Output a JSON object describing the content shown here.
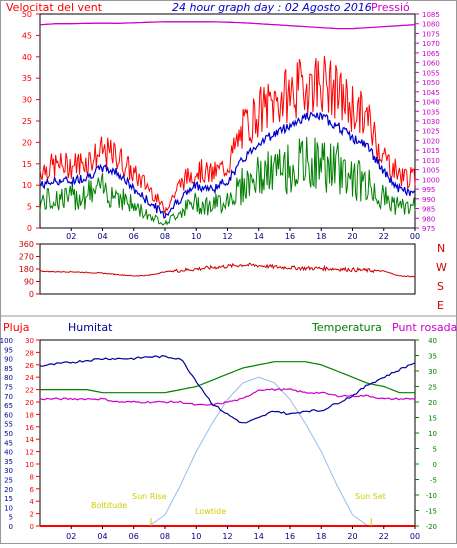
{
  "title": "24 hour graph day : 02 Agosto 2016",
  "top_panel": {
    "left_label": "Velocitat del vent",
    "right_label": "Pressió"
  },
  "dir_panel": {
    "compass_labels": [
      "N",
      "W",
      "S",
      "E",
      "N"
    ]
  },
  "bottom_panel": {
    "label_pluja": "Pluja",
    "label_humitat": "Humitat",
    "label_temperatura": "Temperatura",
    "label_punt_rosada": "Punt rosada",
    "annotations": [
      "Sun Rise",
      "Sun Set",
      "Boltitude",
      "Lowtide"
    ]
  },
  "colors": {
    "wind_gust": "#ff0000",
    "wind_avg": "#0000cc",
    "wind_low": "#008000",
    "pressure": "#cc00cc",
    "direction": "#cc0000",
    "humidity": "#000099",
    "temperature": "#008000",
    "dewpoint": "#cc00cc",
    "solar": "#99bbee",
    "rain": "#ff0000",
    "annotation": "#cccc00"
  },
  "chart_data": [
    {
      "type": "line",
      "title": "24 hour graph day : 02 Agosto 2016",
      "x_ticks": [
        "02",
        "04",
        "06",
        "08",
        "10",
        "12",
        "14",
        "16",
        "18",
        "20",
        "22",
        "00"
      ],
      "left_axis": {
        "ylim": [
          0,
          50
        ],
        "ticks": [
          0,
          5,
          10,
          15,
          20,
          25,
          30,
          35,
          40,
          45,
          50
        ]
      },
      "right_axis": {
        "ylim": [
          975,
          1085
        ],
        "ticks": [
          975,
          980,
          985,
          990,
          995,
          1000,
          1005,
          1010,
          1015,
          1020,
          1025,
          1030,
          1035,
          1040,
          1045,
          1050,
          1055,
          1060,
          1065,
          1070,
          1075,
          1080,
          1085
        ]
      },
      "x": [
        0,
        1,
        2,
        3,
        4,
        5,
        6,
        7,
        8,
        9,
        10,
        11,
        12,
        13,
        14,
        15,
        16,
        17,
        18,
        19,
        20,
        21,
        22,
        23,
        24
      ],
      "series": [
        {
          "role": "wind_gust",
          "axis": "left",
          "values": [
            13,
            14,
            14,
            15,
            17,
            16,
            12,
            9,
            4,
            10,
            13,
            12,
            14,
            22,
            26,
            28,
            30,
            32,
            33,
            30,
            27,
            24,
            16,
            12,
            11
          ]
        },
        {
          "role": "wind_avg",
          "axis": "left",
          "values": [
            10,
            11,
            11,
            12,
            14,
            13,
            9,
            6,
            3,
            7,
            10,
            9,
            11,
            16,
            20,
            22,
            24,
            26,
            26,
            24,
            21,
            19,
            13,
            9,
            8
          ]
        },
        {
          "role": "wind_low",
          "axis": "left",
          "values": [
            6,
            7,
            7,
            8,
            9,
            8,
            5,
            3,
            1,
            4,
            6,
            5,
            7,
            10,
            12,
            13,
            14,
            15,
            15,
            14,
            12,
            10,
            7,
            5,
            5
          ]
        },
        {
          "role": "pressure",
          "axis": "right",
          "values": [
            1079.5,
            1080,
            1080,
            1080.2,
            1080.3,
            1080.2,
            1080.5,
            1080.8,
            1081,
            1081,
            1081,
            1081,
            1080.8,
            1080.5,
            1080,
            1079.5,
            1079,
            1078.5,
            1078,
            1077.5,
            1077.5,
            1078,
            1078.5,
            1079,
            1079.5
          ]
        }
      ]
    },
    {
      "type": "line",
      "x_ticks": [
        "02",
        "04",
        "06",
        "08",
        "10",
        "12",
        "14",
        "16",
        "18",
        "20",
        "22",
        "00"
      ],
      "ylim": [
        0,
        360
      ],
      "y_ticks": [
        0,
        90,
        180,
        270,
        360
      ],
      "x": [
        0,
        1,
        2,
        3,
        4,
        5,
        6,
        7,
        8,
        9,
        10,
        11,
        12,
        13,
        14,
        15,
        16,
        17,
        18,
        19,
        20,
        21,
        22,
        23,
        24
      ],
      "series": [
        {
          "role": "direction",
          "values": [
            165,
            160,
            160,
            155,
            150,
            140,
            130,
            135,
            160,
            170,
            180,
            190,
            200,
            210,
            205,
            195,
            190,
            185,
            185,
            180,
            175,
            170,
            165,
            130,
            125
          ]
        }
      ]
    },
    {
      "type": "line",
      "x_ticks": [
        "02",
        "04",
        "06",
        "08",
        "10",
        "12",
        "14",
        "16",
        "18",
        "20",
        "22",
        "00"
      ],
      "axes": {
        "humidity": {
          "ylim": [
            0,
            100
          ],
          "ticks": [
            0,
            5,
            10,
            15,
            20,
            25,
            30,
            35,
            40,
            45,
            50,
            55,
            60,
            65,
            70,
            75,
            80,
            85,
            90,
            95,
            100
          ]
        },
        "rain": {
          "ylim": [
            0,
            30
          ],
          "ticks": [
            0,
            2,
            4,
            6,
            8,
            10,
            12,
            14,
            16,
            18,
            20,
            22,
            24,
            26,
            28,
            30
          ]
        },
        "temperature": {
          "ylim": [
            -20,
            40
          ],
          "ticks": [
            -20,
            -15,
            -10,
            -5,
            0,
            5,
            10,
            15,
            20,
            25,
            30,
            35,
            40
          ]
        }
      },
      "x": [
        0,
        1,
        2,
        3,
        4,
        5,
        6,
        7,
        8,
        9,
        10,
        11,
        12,
        13,
        14,
        15,
        16,
        17,
        18,
        19,
        20,
        21,
        22,
        23,
        24
      ],
      "series": [
        {
          "role": "humidity",
          "axis": "humidity",
          "values": [
            86,
            87,
            88,
            89,
            90,
            90,
            90,
            91,
            91,
            90,
            78,
            66,
            60,
            55,
            58,
            62,
            60,
            62,
            62,
            66,
            70,
            76,
            80,
            84,
            88
          ]
        },
        {
          "role": "temperature",
          "axis": "temperature",
          "values": [
            24,
            24,
            24,
            24,
            23,
            23,
            23,
            23,
            23,
            24,
            25,
            27,
            29,
            31,
            32,
            33,
            33,
            33,
            32,
            30,
            28,
            26,
            25,
            23,
            23
          ]
        },
        {
          "role": "dewpoint",
          "axis": "temperature",
          "values": [
            21,
            21,
            21,
            21,
            21,
            20,
            20,
            20,
            20,
            20,
            19,
            19,
            20,
            21,
            24,
            24,
            24,
            23,
            23,
            22,
            22,
            22,
            21,
            21,
            21
          ]
        },
        {
          "role": "solar",
          "axis": "humidity",
          "values": [
            0,
            0,
            0,
            0,
            0,
            0,
            0,
            0,
            6,
            22,
            40,
            55,
            68,
            77,
            80,
            77,
            68,
            55,
            40,
            22,
            6,
            0,
            0,
            0,
            0
          ]
        },
        {
          "role": "rain",
          "axis": "rain",
          "values": [
            0,
            0,
            0,
            0,
            0,
            0,
            0,
            0,
            0,
            0,
            0,
            0,
            0,
            0,
            0,
            0,
            0,
            0,
            0,
            0,
            0,
            0,
            0,
            0,
            0
          ]
        }
      ]
    }
  ]
}
